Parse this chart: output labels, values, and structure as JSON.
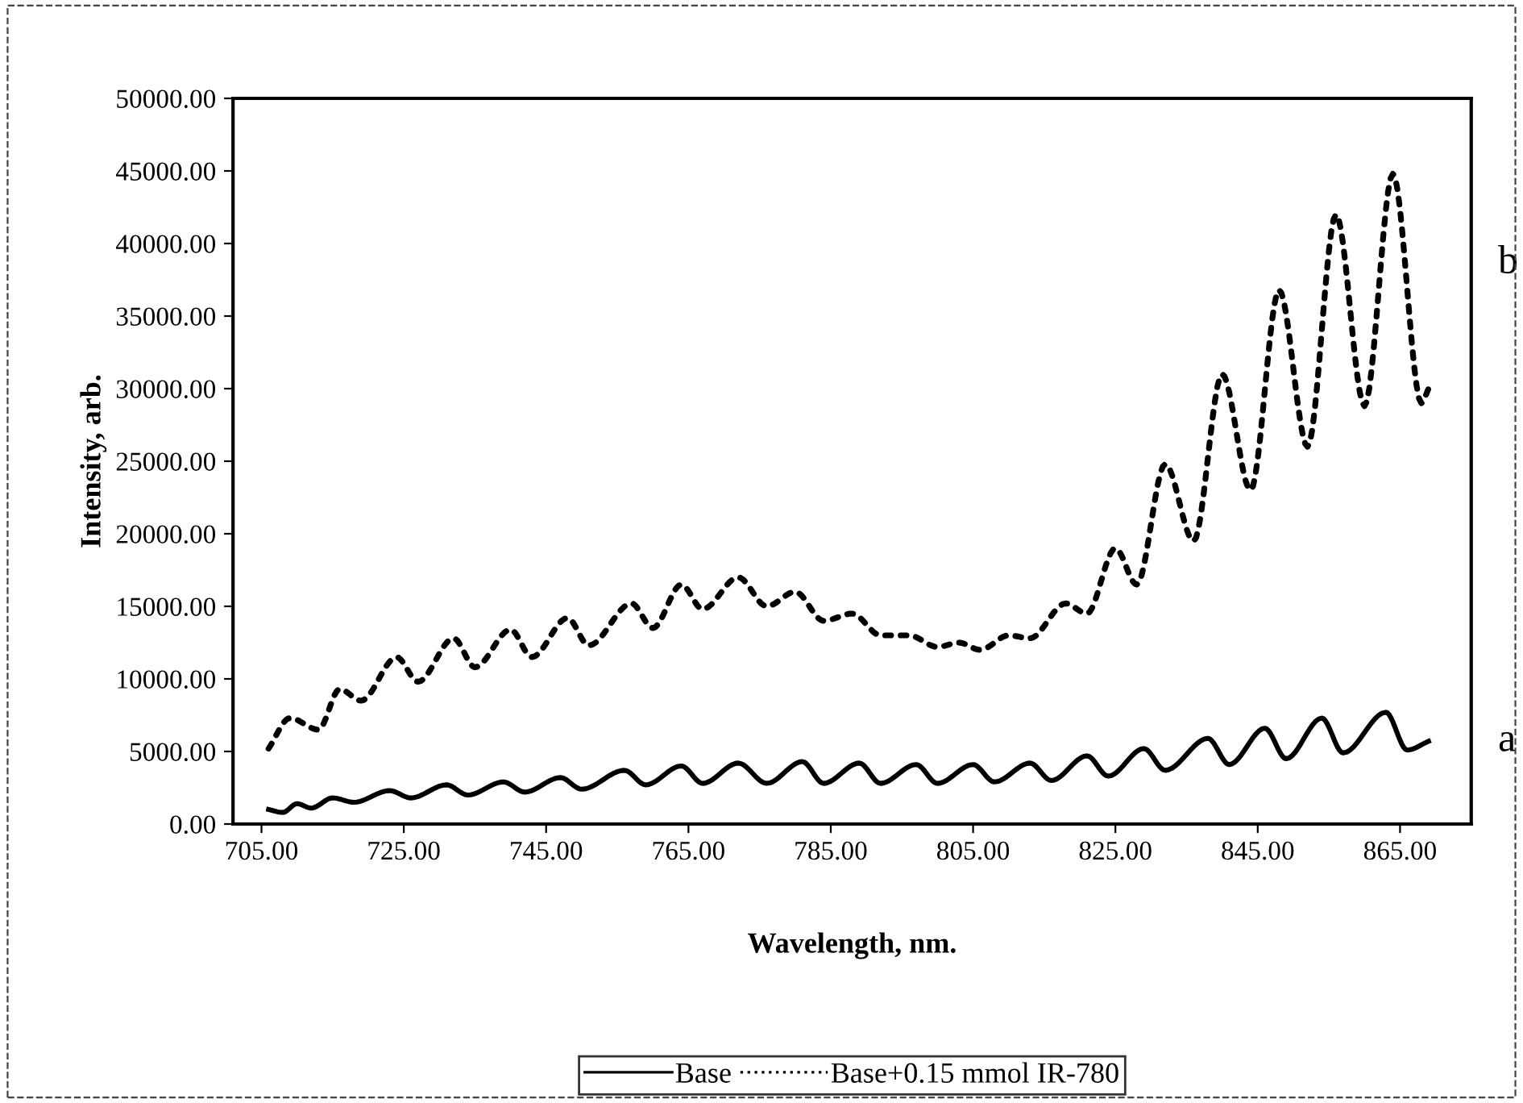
{
  "chart_data": {
    "type": "line",
    "xlabel": "Wavelength, nm.",
    "ylabel": "Intensity, arb.",
    "xlim": [
      701,
      875
    ],
    "xticks": [
      {
        "value": 705,
        "label": "705.00"
      },
      {
        "value": 725,
        "label": "725.00"
      },
      {
        "value": 745,
        "label": "745.00"
      },
      {
        "value": 765,
        "label": "765.00"
      },
      {
        "value": 785,
        "label": "785.00"
      },
      {
        "value": 805,
        "label": "805.00"
      },
      {
        "value": 825,
        "label": "825.00"
      },
      {
        "value": 845,
        "label": "845.00"
      },
      {
        "value": 865,
        "label": "865.00"
      }
    ],
    "ylim": [
      0,
      50000
    ],
    "yticks": [
      {
        "value": 0,
        "label": "0.00"
      },
      {
        "value": 5000,
        "label": "5000.00"
      },
      {
        "value": 10000,
        "label": "10000.00"
      },
      {
        "value": 15000,
        "label": "15000.00"
      },
      {
        "value": 20000,
        "label": "20000.00"
      },
      {
        "value": 25000,
        "label": "25000.00"
      },
      {
        "value": 30000,
        "label": "30000.00"
      },
      {
        "value": 35000,
        "label": "35000.00"
      },
      {
        "value": 40000,
        "label": "40000.00"
      },
      {
        "value": 45000,
        "label": "45000.00"
      },
      {
        "value": 50000,
        "label": "50000.00"
      }
    ],
    "grid": false,
    "legend": "bottom",
    "marker": "none",
    "series": [
      {
        "name": "Base",
        "color": "#000000",
        "line_style": "solid",
        "x": [
          706,
          708,
          710,
          712,
          715,
          718,
          723,
          726,
          731,
          734,
          739,
          742,
          747,
          750,
          756,
          759,
          764,
          767,
          772,
          776,
          781,
          784,
          789,
          792,
          797,
          800,
          805,
          808,
          813,
          816,
          821,
          824,
          829,
          832,
          838,
          841,
          846,
          849,
          854,
          857,
          863,
          866,
          869
        ],
        "values": [
          1000,
          800,
          1400,
          1100,
          1800,
          1500,
          2300,
          1800,
          2700,
          2000,
          2900,
          2200,
          3200,
          2400,
          3700,
          2700,
          4000,
          2800,
          4200,
          2800,
          4300,
          2800,
          4200,
          2800,
          4100,
          2800,
          4100,
          2900,
          4200,
          3000,
          4700,
          3300,
          5200,
          3700,
          5900,
          4100,
          6600,
          4500,
          7300,
          4900,
          7700,
          5100,
          5700
        ]
      },
      {
        "name": "Base+0.15 mmol IR-780",
        "color": "#000000",
        "line_style": "dotted",
        "x": [
          706,
          709,
          713,
          716,
          719,
          724,
          727,
          732,
          735,
          740,
          743,
          748,
          751,
          757,
          760,
          764,
          767,
          772,
          776,
          780,
          784,
          788,
          792,
          796,
          800,
          803,
          806,
          810,
          813,
          818,
          821,
          825,
          828,
          832,
          836,
          840,
          844,
          848,
          852,
          856,
          860,
          864,
          868,
          869
        ],
        "values": [
          5200,
          7300,
          6500,
          9300,
          8500,
          11500,
          9800,
          12800,
          10800,
          13400,
          11500,
          14200,
          12300,
          15200,
          13500,
          16500,
          14800,
          17000,
          15000,
          16000,
          14000,
          14500,
          13000,
          13000,
          12200,
          12500,
          12000,
          13000,
          12800,
          15200,
          14500,
          19000,
          16500,
          24800,
          19500,
          31000,
          23000,
          36800,
          26000,
          42000,
          28800,
          44800,
          29000,
          30000
        ]
      }
    ],
    "annotations": [
      "a",
      "b"
    ]
  }
}
